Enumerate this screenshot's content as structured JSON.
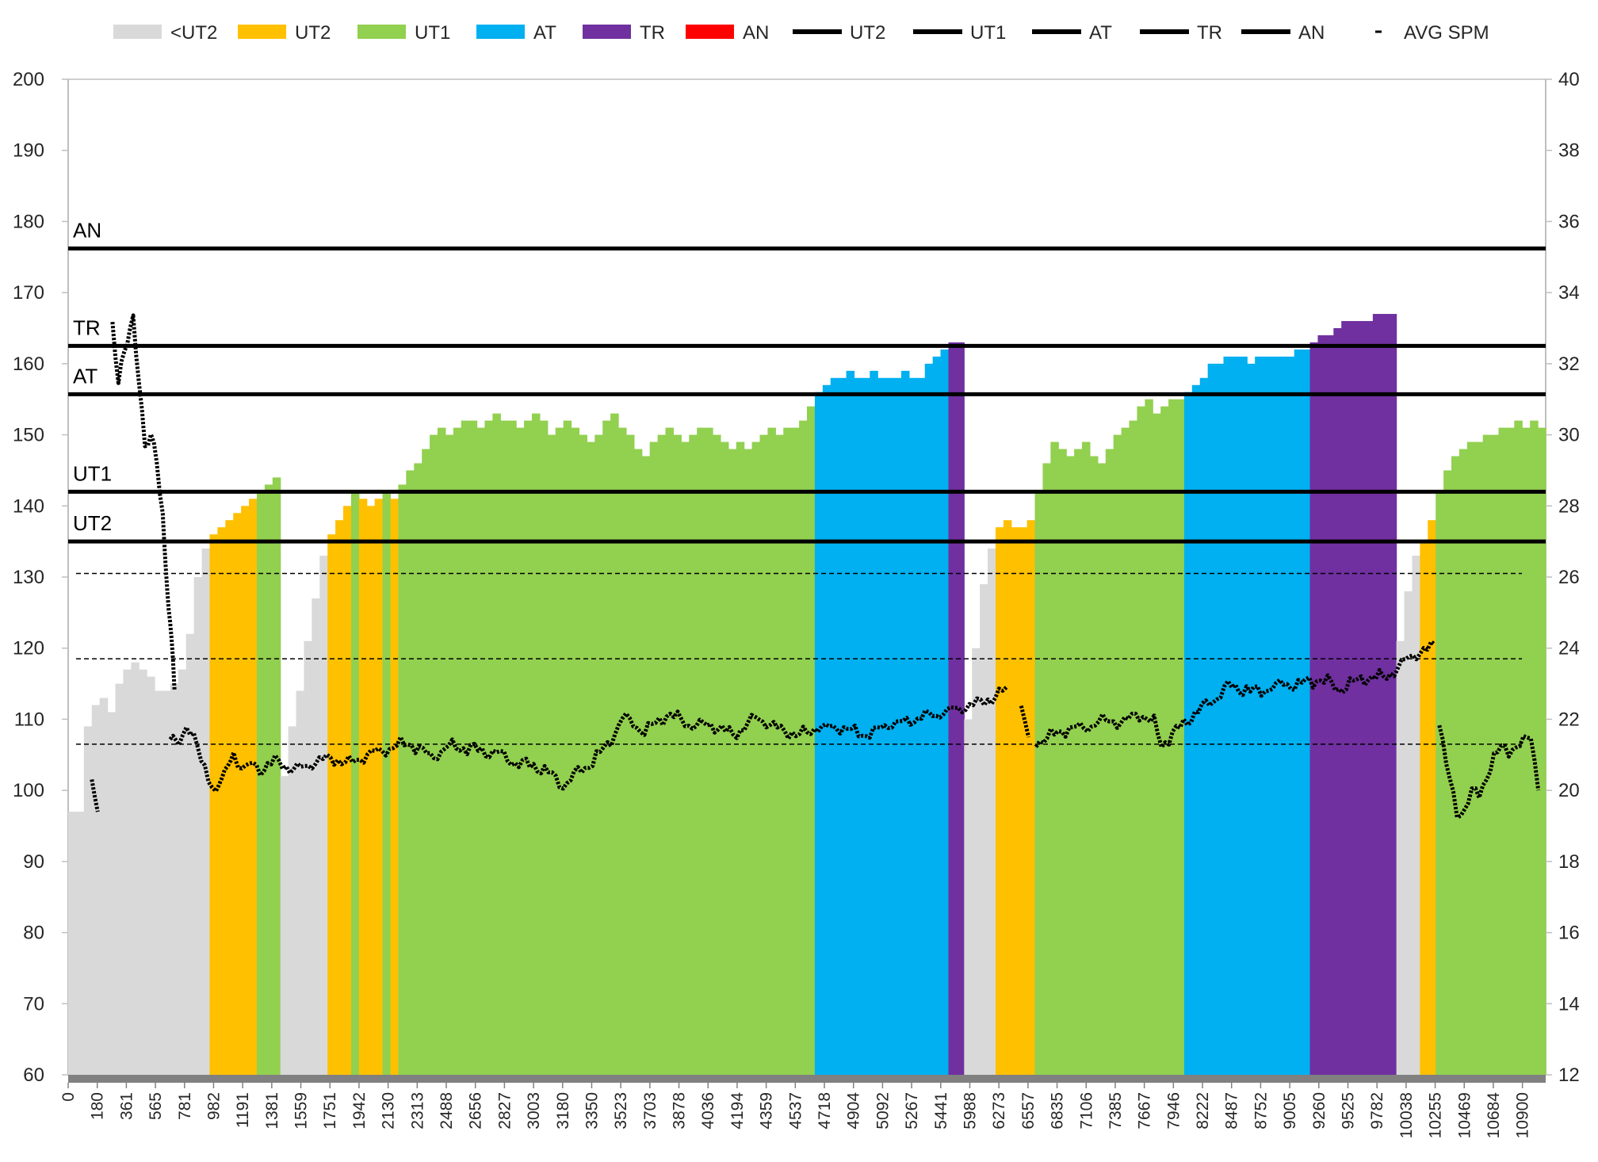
{
  "chart_data": {
    "type": "bar",
    "title": "",
    "xlabel": "",
    "ylabel": "",
    "ylim": [
      60,
      200
    ],
    "y2lim": [
      12,
      40
    ],
    "y_ticks": [
      "60",
      "70",
      "80",
      "90",
      "100",
      "110",
      "120",
      "130",
      "140",
      "150",
      "160",
      "170",
      "180",
      "190",
      "200"
    ],
    "y2_ticks": [
      "12",
      "14",
      "16",
      "18",
      "20",
      "22",
      "24",
      "26",
      "28",
      "30",
      "32",
      "34",
      "36",
      "38",
      "40"
    ],
    "x_ticks": [
      "0",
      "180",
      "361",
      "565",
      "781",
      "982",
      "1191",
      "1381",
      "1559",
      "1751",
      "1942",
      "2130",
      "2313",
      "2488",
      "2656",
      "2827",
      "3003",
      "3180",
      "3350",
      "3523",
      "3703",
      "3878",
      "4036",
      "4194",
      "4359",
      "4537",
      "4718",
      "4904",
      "5092",
      "5267",
      "5441",
      "5988",
      "6273",
      "6557",
      "6835",
      "7106",
      "7385",
      "7667",
      "7946",
      "8222",
      "8487",
      "8752",
      "9005",
      "9260",
      "9525",
      "9782",
      "10038",
      "10255",
      "10469",
      "10684",
      "10900"
    ],
    "legend": {
      "items": [
        {
          "label": "<UT2",
          "kind": "box",
          "color": "#d9d9d9"
        },
        {
          "label": "UT2",
          "kind": "box",
          "color": "#ffc000"
        },
        {
          "label": "UT1",
          "kind": "box",
          "color": "#92d050"
        },
        {
          "label": "AT",
          "kind": "box",
          "color": "#00b0f0"
        },
        {
          "label": "TR",
          "kind": "box",
          "color": "#7030a0"
        },
        {
          "label": "AN",
          "kind": "box",
          "color": "#ff0000"
        },
        {
          "label": "UT2",
          "kind": "line",
          "color": "#000000"
        },
        {
          "label": "UT1",
          "kind": "line",
          "color": "#000000"
        },
        {
          "label": "AT",
          "kind": "line",
          "color": "#000000"
        },
        {
          "label": "TR",
          "kind": "line",
          "color": "#000000"
        },
        {
          "label": "AN",
          "kind": "line",
          "color": "#000000"
        },
        {
          "label": "AVG SPM",
          "kind": "dash",
          "color": "#000000"
        }
      ]
    },
    "thresholds": [
      {
        "name": "AN",
        "value": 176.2
      },
      {
        "name": "TR",
        "value": 162.5
      },
      {
        "name": "AT",
        "value": 155.7
      },
      {
        "name": "UT1",
        "value": 142
      },
      {
        "name": "UT2",
        "value": 135
      }
    ],
    "avg_spm_reference_lines": [
      26.1,
      23.7,
      21.3
    ],
    "heart_rate_profile": [
      [
        0,
        97
      ],
      [
        1,
        97
      ],
      [
        2,
        109
      ],
      [
        3,
        112
      ],
      [
        4,
        113
      ],
      [
        5,
        111
      ],
      [
        6,
        115
      ],
      [
        7,
        117
      ],
      [
        8,
        118
      ],
      [
        9,
        117
      ],
      [
        10,
        116
      ],
      [
        11,
        114
      ],
      [
        12,
        114
      ],
      [
        13,
        115
      ],
      [
        14,
        117
      ],
      [
        15,
        122
      ],
      [
        16,
        130
      ],
      [
        17,
        134
      ],
      [
        18,
        136
      ],
      [
        19,
        137
      ],
      [
        20,
        138
      ],
      [
        21,
        139
      ],
      [
        22,
        140
      ],
      [
        23,
        141
      ],
      [
        24,
        142
      ],
      [
        25,
        143
      ],
      [
        26,
        144
      ],
      [
        27,
        102
      ],
      [
        28,
        109
      ],
      [
        29,
        114
      ],
      [
        30,
        121
      ],
      [
        31,
        127
      ],
      [
        32,
        133
      ],
      [
        33,
        136
      ],
      [
        34,
        138
      ],
      [
        35,
        140
      ],
      [
        36,
        142
      ],
      [
        37,
        141
      ],
      [
        38,
        140
      ],
      [
        39,
        141
      ],
      [
        40,
        142
      ],
      [
        41,
        141
      ],
      [
        42,
        143
      ],
      [
        43,
        145
      ],
      [
        44,
        146
      ],
      [
        45,
        148
      ],
      [
        46,
        150
      ],
      [
        47,
        151
      ],
      [
        48,
        150
      ],
      [
        49,
        151
      ],
      [
        50,
        152
      ],
      [
        51,
        152
      ],
      [
        52,
        151
      ],
      [
        53,
        152
      ],
      [
        54,
        153
      ],
      [
        55,
        152
      ],
      [
        56,
        152
      ],
      [
        57,
        151
      ],
      [
        58,
        152
      ],
      [
        59,
        153
      ],
      [
        60,
        152
      ],
      [
        61,
        150
      ],
      [
        62,
        151
      ],
      [
        63,
        152
      ],
      [
        64,
        151
      ],
      [
        65,
        150
      ],
      [
        66,
        149
      ],
      [
        67,
        150
      ],
      [
        68,
        152
      ],
      [
        69,
        153
      ],
      [
        70,
        151
      ],
      [
        71,
        150
      ],
      [
        72,
        148
      ],
      [
        73,
        147
      ],
      [
        74,
        149
      ],
      [
        75,
        150
      ],
      [
        76,
        151
      ],
      [
        77,
        150
      ],
      [
        78,
        149
      ],
      [
        79,
        150
      ],
      [
        80,
        151
      ],
      [
        81,
        151
      ],
      [
        82,
        150
      ],
      [
        83,
        149
      ],
      [
        84,
        148
      ],
      [
        85,
        149
      ],
      [
        86,
        148
      ],
      [
        87,
        149
      ],
      [
        88,
        150
      ],
      [
        89,
        151
      ],
      [
        90,
        150
      ],
      [
        91,
        151
      ],
      [
        92,
        151
      ],
      [
        93,
        152
      ],
      [
        94,
        154
      ],
      [
        95,
        156
      ],
      [
        96,
        157
      ],
      [
        97,
        158
      ],
      [
        98,
        158
      ],
      [
        99,
        159
      ],
      [
        100,
        158
      ],
      [
        101,
        158
      ],
      [
        102,
        159
      ],
      [
        103,
        158
      ],
      [
        104,
        158
      ],
      [
        105,
        158
      ],
      [
        106,
        159
      ],
      [
        107,
        158
      ],
      [
        108,
        158
      ],
      [
        109,
        160
      ],
      [
        110,
        161
      ],
      [
        111,
        162
      ],
      [
        112,
        163
      ],
      [
        113,
        163
      ],
      [
        114,
        110
      ],
      [
        115,
        120
      ],
      [
        116,
        129
      ],
      [
        117,
        134
      ],
      [
        118,
        137
      ],
      [
        119,
        138
      ],
      [
        120,
        137
      ],
      [
        121,
        137
      ],
      [
        122,
        138
      ],
      [
        123,
        142
      ],
      [
        124,
        146
      ],
      [
        125,
        149
      ],
      [
        126,
        148
      ],
      [
        127,
        147
      ],
      [
        128,
        148
      ],
      [
        129,
        149
      ],
      [
        130,
        147
      ],
      [
        131,
        146
      ],
      [
        132,
        148
      ],
      [
        133,
        150
      ],
      [
        134,
        151
      ],
      [
        135,
        152
      ],
      [
        136,
        154
      ],
      [
        137,
        155
      ],
      [
        138,
        153
      ],
      [
        139,
        154
      ],
      [
        140,
        155
      ],
      [
        141,
        155
      ],
      [
        142,
        156
      ],
      [
        143,
        157
      ],
      [
        144,
        158
      ],
      [
        145,
        160
      ],
      [
        146,
        160
      ],
      [
        147,
        161
      ],
      [
        148,
        161
      ],
      [
        149,
        161
      ],
      [
        150,
        160
      ],
      [
        151,
        161
      ],
      [
        152,
        161
      ],
      [
        153,
        161
      ],
      [
        154,
        161
      ],
      [
        155,
        161
      ],
      [
        156,
        162
      ],
      [
        157,
        162
      ],
      [
        158,
        163
      ],
      [
        159,
        164
      ],
      [
        160,
        164
      ],
      [
        161,
        165
      ],
      [
        162,
        166
      ],
      [
        163,
        166
      ],
      [
        164,
        166
      ],
      [
        165,
        166
      ],
      [
        166,
        167
      ],
      [
        167,
        167
      ],
      [
        168,
        167
      ],
      [
        169,
        121
      ],
      [
        170,
        128
      ],
      [
        171,
        133
      ],
      [
        172,
        135
      ],
      [
        173,
        138
      ],
      [
        174,
        142
      ],
      [
        175,
        145
      ],
      [
        176,
        147
      ],
      [
        177,
        148
      ],
      [
        178,
        149
      ],
      [
        179,
        149
      ],
      [
        180,
        150
      ],
      [
        181,
        150
      ],
      [
        182,
        151
      ],
      [
        183,
        151
      ],
      [
        184,
        152
      ],
      [
        185,
        151
      ],
      [
        186,
        152
      ],
      [
        187,
        151
      ]
    ]
  }
}
